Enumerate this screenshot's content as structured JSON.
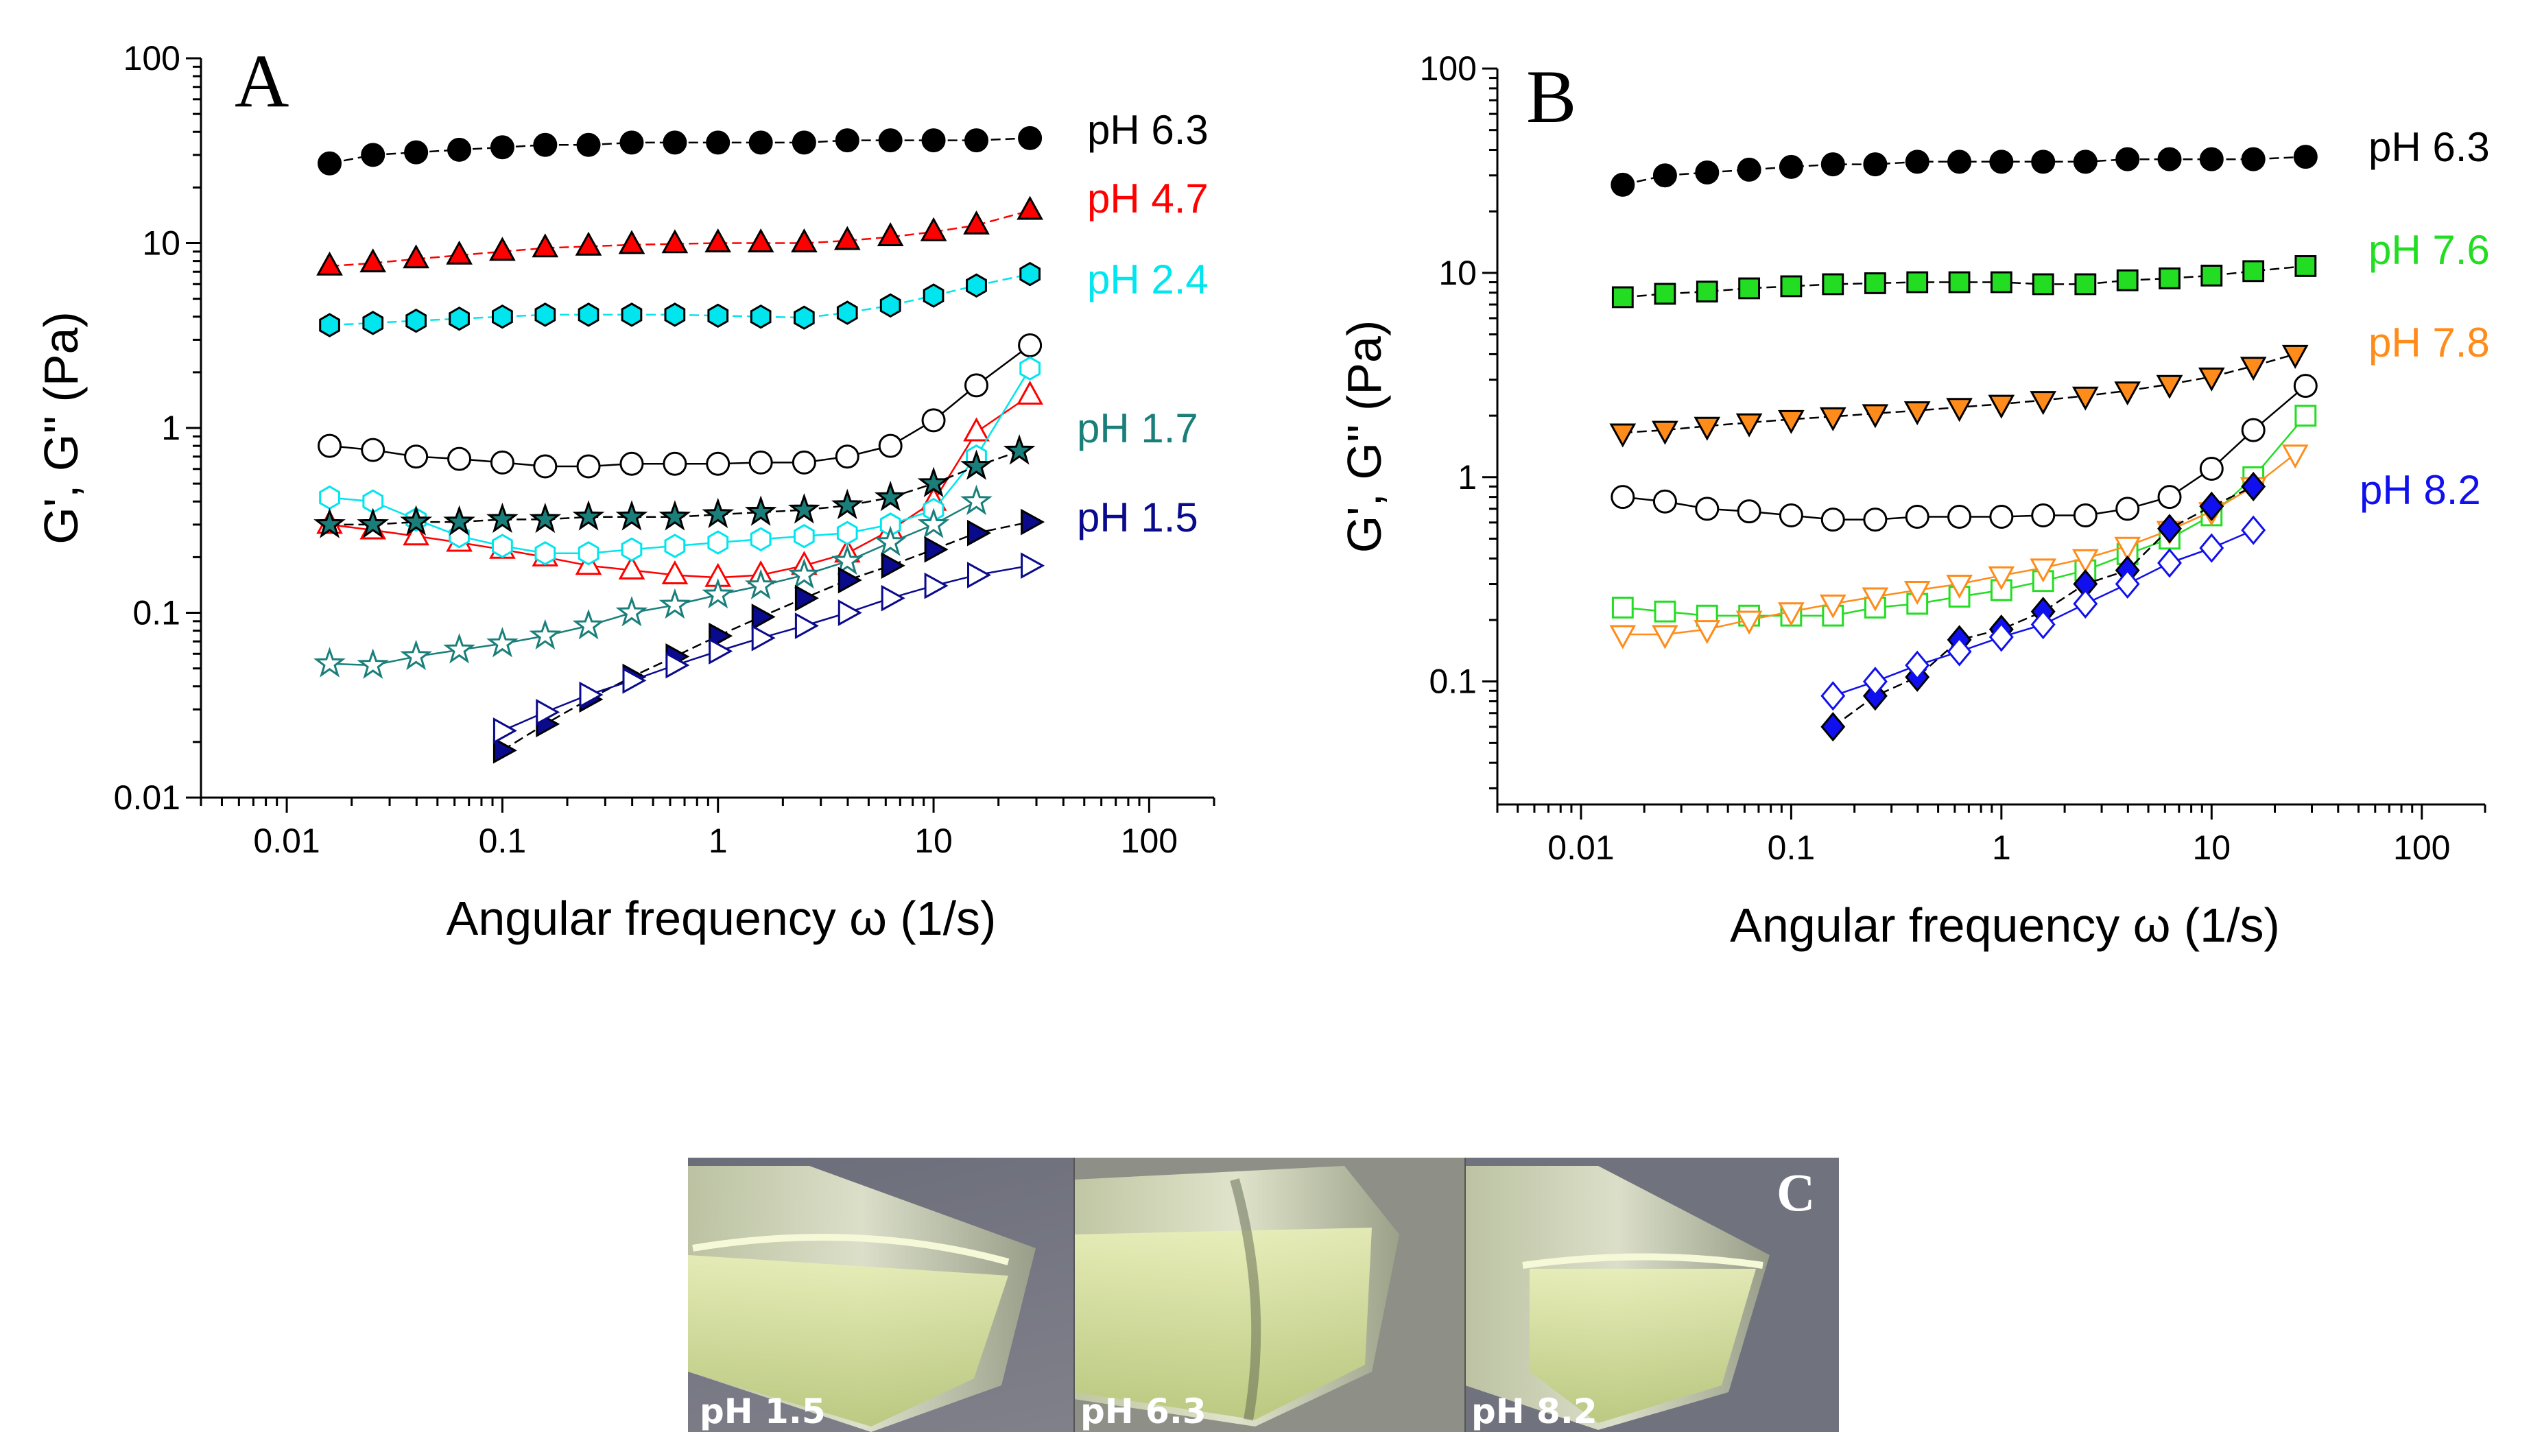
{
  "chart_data": [
    {
      "panel": "A",
      "type": "scatter",
      "xscale": "log",
      "yscale": "log",
      "xlim": [
        0.004,
        200
      ],
      "ylim": [
        0.01,
        100
      ],
      "xlabel": "Angular frequency ω (1/s)",
      "ylabel": "G', G'' (Pa)",
      "xticks": [
        0.01,
        0.1,
        1,
        10,
        100
      ],
      "xtick_labels": [
        "0.01",
        "0.1",
        "1",
        "10",
        "100"
      ],
      "yticks": [
        0.01,
        0.1,
        1,
        10,
        100
      ],
      "ytick_labels": [
        "0.01",
        "0.1",
        "1",
        "10",
        "100"
      ],
      "series_labels": [
        {
          "text": "pH 6.3",
          "color": "#000000"
        },
        {
          "text": "pH 4.7",
          "color": "#ff0000"
        },
        {
          "text": "pH 2.4",
          "color": "#00e5ee"
        },
        {
          "text": "pH 1.7",
          "color": "#1a7f7a"
        },
        {
          "text": "pH 1.5",
          "color": "#0a0a8c"
        }
      ],
      "series": [
        {
          "name": "pH 6.3 G'",
          "marker": "circle",
          "filled": true,
          "color": "#000000",
          "line": "#000000",
          "x": [
            0.0158,
            0.0251,
            0.0398,
            0.0631,
            0.1,
            0.158,
            0.251,
            0.398,
            0.631,
            1,
            1.58,
            2.51,
            3.98,
            6.31,
            10,
            15.8,
            28
          ],
          "y": [
            27,
            30,
            31,
            32,
            33,
            34,
            34,
            35,
            35,
            35,
            35,
            35,
            36,
            36,
            36,
            36,
            37
          ]
        },
        {
          "name": "pH 6.3 G''",
          "marker": "circle",
          "filled": false,
          "color": "#000000",
          "line": "#000000",
          "x": [
            0.0158,
            0.0251,
            0.0398,
            0.0631,
            0.1,
            0.158,
            0.251,
            0.398,
            0.631,
            1,
            1.58,
            2.51,
            3.98,
            6.31,
            10,
            15.8,
            28
          ],
          "y": [
            0.8,
            0.76,
            0.7,
            0.68,
            0.65,
            0.62,
            0.62,
            0.64,
            0.64,
            0.64,
            0.65,
            0.65,
            0.7,
            0.8,
            1.1,
            1.7,
            2.8
          ]
        },
        {
          "name": "pH 4.7 G'",
          "marker": "triangle-up",
          "filled": true,
          "color": "#ff0000",
          "line": "#ff0000",
          "x": [
            0.0158,
            0.0251,
            0.0398,
            0.0631,
            0.1,
            0.158,
            0.251,
            0.398,
            0.631,
            1,
            1.58,
            2.51,
            3.98,
            6.31,
            10,
            15.8,
            28
          ],
          "y": [
            7.5,
            7.8,
            8.2,
            8.6,
            9,
            9.4,
            9.6,
            9.8,
            9.9,
            10,
            10,
            10,
            10.3,
            10.8,
            11.5,
            12.5,
            15
          ]
        },
        {
          "name": "pH 4.7 G''",
          "marker": "triangle-up",
          "filled": false,
          "color": "#ff0000",
          "line": "#ff0000",
          "x": [
            0.0158,
            0.0251,
            0.0398,
            0.0631,
            0.1,
            0.158,
            0.251,
            0.398,
            0.631,
            1,
            1.58,
            2.51,
            3.98,
            6.31,
            10,
            15.8,
            28
          ],
          "y": [
            0.3,
            0.28,
            0.26,
            0.24,
            0.22,
            0.2,
            0.18,
            0.17,
            0.16,
            0.155,
            0.16,
            0.18,
            0.21,
            0.28,
            0.4,
            0.95,
            1.5
          ]
        },
        {
          "name": "pH 2.4 G'",
          "marker": "hexagon",
          "filled": true,
          "color": "#00e5ee",
          "line": "#00e5ee",
          "x": [
            0.0158,
            0.0251,
            0.0398,
            0.0631,
            0.1,
            0.158,
            0.251,
            0.398,
            0.631,
            1,
            1.58,
            2.51,
            3.98,
            6.31,
            10,
            15.8,
            28
          ],
          "y": [
            3.6,
            3.7,
            3.8,
            3.9,
            4.0,
            4.1,
            4.1,
            4.1,
            4.1,
            4.05,
            4.0,
            3.95,
            4.2,
            4.6,
            5.2,
            5.9,
            6.8
          ]
        },
        {
          "name": "pH 2.4 G''",
          "marker": "hexagon",
          "filled": false,
          "color": "#00e5ee",
          "line": "#00e5ee",
          "x": [
            0.0158,
            0.0251,
            0.0398,
            0.0631,
            0.1,
            0.158,
            0.251,
            0.398,
            0.631,
            1,
            1.58,
            2.51,
            3.98,
            6.31,
            10,
            15.8,
            28
          ],
          "y": [
            0.42,
            0.4,
            0.32,
            0.26,
            0.23,
            0.21,
            0.21,
            0.22,
            0.23,
            0.24,
            0.25,
            0.26,
            0.27,
            0.3,
            0.36,
            0.7,
            2.1
          ]
        },
        {
          "name": "pH 1.7 G'",
          "marker": "star",
          "filled": true,
          "color": "#1a7f7a",
          "line": "#000000",
          "x": [
            0.0158,
            0.0251,
            0.0398,
            0.0631,
            0.1,
            0.158,
            0.251,
            0.398,
            0.631,
            1,
            1.58,
            2.51,
            3.98,
            6.31,
            10,
            15.8,
            25
          ],
          "y": [
            0.3,
            0.3,
            0.31,
            0.31,
            0.32,
            0.32,
            0.33,
            0.33,
            0.33,
            0.34,
            0.35,
            0.36,
            0.38,
            0.42,
            0.5,
            0.62,
            0.75
          ]
        },
        {
          "name": "pH 1.7 G''",
          "marker": "star",
          "filled": false,
          "color": "#1a7f7a",
          "line": "#1a7f7a",
          "x": [
            0.0158,
            0.0251,
            0.0398,
            0.0631,
            0.1,
            0.158,
            0.251,
            0.398,
            0.631,
            1,
            1.58,
            2.51,
            3.98,
            6.31,
            10,
            15.8
          ],
          "y": [
            0.053,
            0.052,
            0.058,
            0.063,
            0.068,
            0.075,
            0.085,
            0.1,
            0.11,
            0.125,
            0.14,
            0.16,
            0.19,
            0.24,
            0.3,
            0.4
          ]
        },
        {
          "name": "pH 1.5 G'",
          "marker": "triangle-right",
          "filled": true,
          "color": "#0a0a8c",
          "line": "#000000",
          "x": [
            0.1,
            0.158,
            0.251,
            0.398,
            0.631,
            1,
            1.58,
            2.51,
            3.98,
            6.31,
            10,
            15.8,
            28
          ],
          "y": [
            0.018,
            0.025,
            0.034,
            0.045,
            0.058,
            0.075,
            0.095,
            0.12,
            0.15,
            0.18,
            0.22,
            0.27,
            0.31
          ]
        },
        {
          "name": "pH 1.5 G''",
          "marker": "triangle-right",
          "filled": false,
          "color": "#0a0a8c",
          "line": "#0a0a8c",
          "x": [
            0.1,
            0.158,
            0.251,
            0.398,
            0.631,
            1,
            1.58,
            2.51,
            3.98,
            6.31,
            10,
            15.8,
            28
          ],
          "y": [
            0.023,
            0.029,
            0.036,
            0.043,
            0.052,
            0.062,
            0.073,
            0.085,
            0.1,
            0.12,
            0.14,
            0.16,
            0.18
          ]
        }
      ]
    },
    {
      "panel": "B",
      "type": "scatter",
      "xscale": "log",
      "yscale": "log",
      "xlim": [
        0.004,
        200
      ],
      "ylim": [
        0.025,
        100
      ],
      "xlabel": "Angular frequency ω (1/s)",
      "ylabel": "G', G'' (Pa)",
      "xticks": [
        0.01,
        0.1,
        1,
        10,
        100
      ],
      "xtick_labels": [
        "0.01",
        "0.1",
        "1",
        "10",
        "100"
      ],
      "yticks": [
        0.1,
        1,
        10,
        100
      ],
      "ytick_labels": [
        "0.1",
        "1",
        "10",
        "100"
      ],
      "series_labels": [
        {
          "text": "pH 6.3",
          "color": "#000000"
        },
        {
          "text": "pH 7.6",
          "color": "#22dd22"
        },
        {
          "text": "pH 7.8",
          "color": "#ff8c1a"
        },
        {
          "text": "pH 8.2",
          "color": "#1010ee"
        }
      ],
      "series": [
        {
          "name": "pH 6.3 G'",
          "marker": "circle",
          "filled": true,
          "color": "#000000",
          "line": "#000000",
          "x": [
            0.0158,
            0.0251,
            0.0398,
            0.0631,
            0.1,
            0.158,
            0.251,
            0.398,
            0.631,
            1,
            1.58,
            2.51,
            3.98,
            6.31,
            10,
            15.8,
            28
          ],
          "y": [
            27,
            30,
            31,
            32,
            33,
            34,
            34,
            35,
            35,
            35,
            35,
            35,
            36,
            36,
            36,
            36,
            37
          ]
        },
        {
          "name": "pH 6.3 G''",
          "marker": "circle",
          "filled": false,
          "color": "#000000",
          "line": "#000000",
          "x": [
            0.0158,
            0.0251,
            0.0398,
            0.0631,
            0.1,
            0.158,
            0.251,
            0.398,
            0.631,
            1,
            1.58,
            2.51,
            3.98,
            6.31,
            10,
            15.8,
            28
          ],
          "y": [
            0.8,
            0.76,
            0.7,
            0.68,
            0.65,
            0.62,
            0.62,
            0.64,
            0.64,
            0.64,
            0.65,
            0.65,
            0.7,
            0.8,
            1.1,
            1.7,
            2.8
          ]
        },
        {
          "name": "pH 7.6 G'",
          "marker": "square",
          "filled": true,
          "color": "#22dd22",
          "line": "#000000",
          "x": [
            0.0158,
            0.0251,
            0.0398,
            0.0631,
            0.1,
            0.158,
            0.251,
            0.398,
            0.631,
            1,
            1.58,
            2.51,
            3.98,
            6.31,
            10,
            15.8,
            28
          ],
          "y": [
            7.6,
            7.9,
            8.1,
            8.4,
            8.6,
            8.8,
            8.9,
            9.0,
            9.0,
            9.0,
            8.8,
            8.8,
            9.2,
            9.4,
            9.7,
            10.2,
            10.8
          ]
        },
        {
          "name": "pH 7.6 G''",
          "marker": "square",
          "filled": false,
          "color": "#22dd22",
          "line": "#22dd22",
          "x": [
            0.0158,
            0.0251,
            0.0398,
            0.0631,
            0.1,
            0.158,
            0.251,
            0.398,
            0.631,
            1,
            1.58,
            2.51,
            3.98,
            6.31,
            10,
            15.8,
            28
          ],
          "y": [
            0.23,
            0.22,
            0.21,
            0.21,
            0.21,
            0.21,
            0.23,
            0.24,
            0.26,
            0.28,
            0.31,
            0.35,
            0.42,
            0.5,
            0.65,
            1.0,
            2.0
          ]
        },
        {
          "name": "pH 7.8 G'",
          "marker": "triangle-down",
          "filled": true,
          "color": "#ff8c1a",
          "line": "#000000",
          "x": [
            0.0158,
            0.0251,
            0.0398,
            0.0631,
            0.1,
            0.158,
            0.251,
            0.398,
            0.631,
            1,
            1.58,
            2.51,
            3.98,
            6.31,
            10,
            15.8,
            25
          ],
          "y": [
            1.65,
            1.7,
            1.78,
            1.85,
            1.92,
            1.98,
            2.05,
            2.12,
            2.2,
            2.28,
            2.38,
            2.5,
            2.65,
            2.85,
            3.1,
            3.5,
            4.0
          ]
        },
        {
          "name": "pH 7.8 G''",
          "marker": "triangle-down",
          "filled": false,
          "color": "#ff8c1a",
          "line": "#ff8c1a",
          "x": [
            0.0158,
            0.0251,
            0.0398,
            0.0631,
            0.1,
            0.158,
            0.251,
            0.398,
            0.631,
            1,
            1.58,
            2.51,
            3.98,
            6.31,
            10,
            15.8,
            25
          ],
          "y": [
            0.17,
            0.17,
            0.18,
            0.2,
            0.22,
            0.24,
            0.26,
            0.28,
            0.3,
            0.33,
            0.36,
            0.4,
            0.46,
            0.55,
            0.68,
            0.9,
            1.3
          ]
        },
        {
          "name": "pH 8.2 G'",
          "marker": "diamond",
          "filled": true,
          "color": "#1010ee",
          "line": "#000000",
          "x": [
            0.158,
            0.251,
            0.398,
            0.631,
            1,
            1.58,
            2.51,
            3.98,
            6.31,
            10,
            15.8
          ],
          "y": [
            0.06,
            0.085,
            0.105,
            0.16,
            0.18,
            0.22,
            0.3,
            0.35,
            0.56,
            0.72,
            0.9
          ]
        },
        {
          "name": "pH 8.2 G''",
          "marker": "diamond",
          "filled": false,
          "color": "#1010ee",
          "line": "#1010ee",
          "x": [
            0.158,
            0.251,
            0.398,
            0.631,
            1,
            1.58,
            2.51,
            3.98,
            6.31,
            10,
            15.8
          ],
          "y": [
            0.085,
            0.1,
            0.12,
            0.14,
            0.165,
            0.19,
            0.24,
            0.3,
            0.38,
            0.45,
            0.55
          ]
        }
      ]
    }
  ],
  "panel_letters": {
    "a": "A",
    "b": "B",
    "c": "C"
  },
  "photo": {
    "labels": [
      "pH 1.5",
      "pH 6.3",
      "pH 8.2"
    ]
  }
}
